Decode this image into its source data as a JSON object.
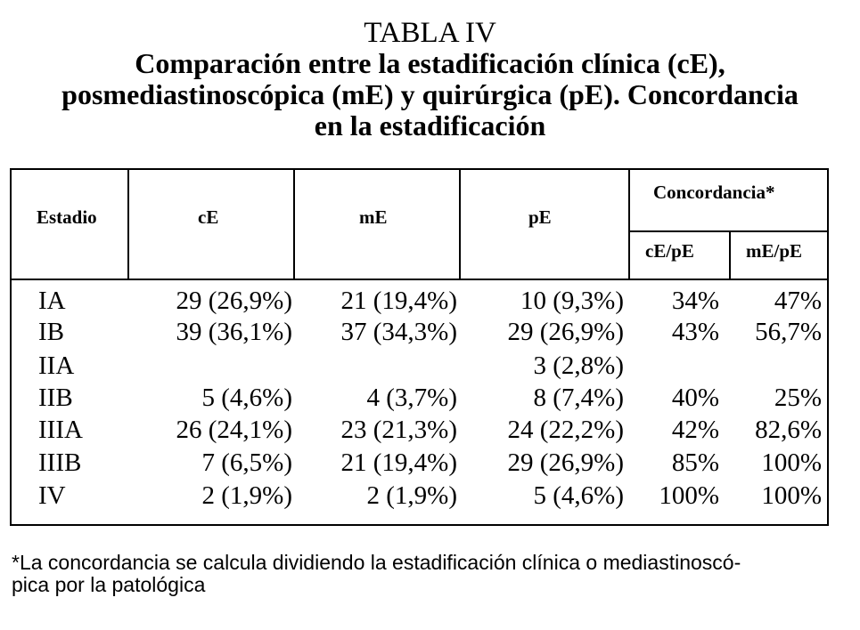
{
  "title": {
    "label": "TABLA IV",
    "line1": "Comparación entre la estadificación clínica (cE),",
    "line2": "posmediastinoscópica (mE) y quirúrgica (pE). Concordancia",
    "line3": "en la estadificación"
  },
  "table": {
    "headers": {
      "stage": "Estadio",
      "ce": "cE",
      "me": "mE",
      "pe": "pE",
      "concordance": "Concordancia*",
      "ce_pe": "cE/pE",
      "me_pe": "mE/pE"
    },
    "rows": [
      {
        "stage": "IA",
        "ce": "29 (26,9%)",
        "me": "21 (19,4%)",
        "pe": "10 (9,3%)",
        "ce_pe": "34%",
        "me_pe": "47%"
      },
      {
        "stage": "IB",
        "ce": "39 (36,1%)",
        "me": "37 (34,3%)",
        "pe": "29 (26,9%)",
        "ce_pe": "43%",
        "me_pe": "56,7%"
      },
      {
        "stage": "IIA",
        "ce": "",
        "me": "",
        "pe": "3 (2,8%)",
        "ce_pe": "",
        "me_pe": ""
      },
      {
        "stage": "IIB",
        "ce": "5 (4,6%)",
        "me": "4 (3,7%)",
        "pe": "8 (7,4%)",
        "ce_pe": "40%",
        "me_pe": "25%"
      },
      {
        "stage": "IIIA",
        "ce": "26 (24,1%)",
        "me": "23 (21,3%)",
        "pe": "24 (22,2%)",
        "ce_pe": "42%",
        "me_pe": "82,6%"
      },
      {
        "stage": "IIIB",
        "ce": "7 (6,5%)",
        "me": "21 (19,4%)",
        "pe": "29 (26,9%)",
        "ce_pe": "85%",
        "me_pe": "100%"
      },
      {
        "stage": "IV",
        "ce": "2 (1,9%)",
        "me": "2 (1,9%)",
        "pe": "5 (4,6%)",
        "ce_pe": "100%",
        "me_pe": "100%"
      }
    ]
  },
  "footnote": {
    "line1": "*La concordancia se calcula dividiendo la estadificación clínica o mediastinoscó-",
    "line2": "pica por la patológica"
  }
}
